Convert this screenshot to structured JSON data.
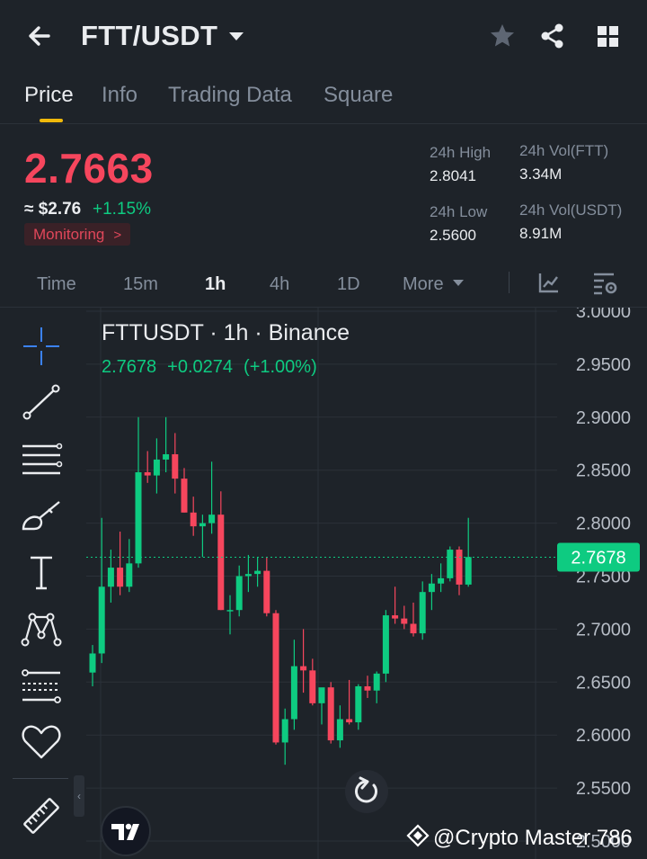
{
  "header": {
    "pair": "FTT/USDT"
  },
  "tabs": [
    {
      "label": "Price",
      "active": true
    },
    {
      "label": "Info",
      "active": false
    },
    {
      "label": "Trading Data",
      "active": false
    },
    {
      "label": "Square",
      "active": false
    }
  ],
  "price": {
    "last": "2.7663",
    "usd": "≈ $2.76",
    "change": "+1.15%",
    "monitoring": "Monitoring",
    "monitoring_chevron": ">"
  },
  "stats": {
    "high_label": "24h High",
    "high_value": "2.8041",
    "low_label": "24h Low",
    "low_value": "2.5600",
    "vol_base_label": "24h Vol(FTT)",
    "vol_base_value": "3.34M",
    "vol_quote_label": "24h Vol(USDT)",
    "vol_quote_value": "8.91M"
  },
  "intervals": [
    {
      "label": "Time",
      "active": false
    },
    {
      "label": "15m",
      "active": false
    },
    {
      "label": "1h",
      "active": true
    },
    {
      "label": "4h",
      "active": false
    },
    {
      "label": "1D",
      "active": false
    },
    {
      "label": "More",
      "active": false
    }
  ],
  "tools": [
    "crosshair-icon",
    "trend-line-icon",
    "horizontal-lines-icon",
    "brush-icon",
    "text-icon",
    "pattern-icon",
    "prediction-icon",
    "favorite-icon",
    "ruler-icon"
  ],
  "chart": {
    "title": "FTTUSDT · 1h · Binance",
    "ohlc_close": "2.7678",
    "ohlc_change": "+0.0274",
    "ohlc_pct": "(+1.00%)",
    "current_price_label": "2.7678",
    "up_color": "#0ecb81",
    "down_color": "#f6465d"
  },
  "watermark": "@Crypto Master 786",
  "chart_data": {
    "type": "candlestick",
    "title": "FTTUSDT · 1h · Binance",
    "ytick_labels": [
      "3.0000",
      "2.9500",
      "2.9000",
      "2.8500",
      "2.8000",
      "2.7500",
      "2.7000",
      "2.6500",
      "2.6000",
      "2.5500",
      "2.5000"
    ],
    "ylim": [
      2.5,
      3.0
    ],
    "current_price": 2.7678,
    "candles": [
      {
        "o": 2.659,
        "h": 2.685,
        "l": 2.646,
        "c": 2.677
      },
      {
        "o": 2.677,
        "h": 2.805,
        "l": 2.668,
        "c": 2.74
      },
      {
        "o": 2.74,
        "h": 2.775,
        "l": 2.725,
        "c": 2.758
      },
      {
        "o": 2.758,
        "h": 2.792,
        "l": 2.732,
        "c": 2.74
      },
      {
        "o": 2.74,
        "h": 2.785,
        "l": 2.735,
        "c": 2.762
      },
      {
        "o": 2.762,
        "h": 2.9,
        "l": 2.758,
        "c": 2.848
      },
      {
        "o": 2.848,
        "h": 2.868,
        "l": 2.838,
        "c": 2.845
      },
      {
        "o": 2.845,
        "h": 2.88,
        "l": 2.828,
        "c": 2.86
      },
      {
        "o": 2.86,
        "h": 2.9,
        "l": 2.848,
        "c": 2.865
      },
      {
        "o": 2.865,
        "h": 2.885,
        "l": 2.828,
        "c": 2.842
      },
      {
        "o": 2.842,
        "h": 2.852,
        "l": 2.81,
        "c": 2.81
      },
      {
        "o": 2.81,
        "h": 2.825,
        "l": 2.788,
        "c": 2.797
      },
      {
        "o": 2.797,
        "h": 2.808,
        "l": 2.768,
        "c": 2.8
      },
      {
        "o": 2.8,
        "h": 2.858,
        "l": 2.79,
        "c": 2.808
      },
      {
        "o": 2.808,
        "h": 2.83,
        "l": 2.718,
        "c": 2.718
      },
      {
        "o": 2.718,
        "h": 2.732,
        "l": 2.695,
        "c": 2.718
      },
      {
        "o": 2.718,
        "h": 2.76,
        "l": 2.712,
        "c": 2.75
      },
      {
        "o": 2.75,
        "h": 2.77,
        "l": 2.735,
        "c": 2.752
      },
      {
        "o": 2.752,
        "h": 2.768,
        "l": 2.74,
        "c": 2.755
      },
      {
        "o": 2.755,
        "h": 2.768,
        "l": 2.712,
        "c": 2.715
      },
      {
        "o": 2.715,
        "h": 2.718,
        "l": 2.591,
        "c": 2.593
      },
      {
        "o": 2.593,
        "h": 2.625,
        "l": 2.572,
        "c": 2.615
      },
      {
        "o": 2.615,
        "h": 2.69,
        "l": 2.605,
        "c": 2.665
      },
      {
        "o": 2.665,
        "h": 2.7,
        "l": 2.64,
        "c": 2.661
      },
      {
        "o": 2.661,
        "h": 2.672,
        "l": 2.628,
        "c": 2.63
      },
      {
        "o": 2.63,
        "h": 2.64,
        "l": 2.61,
        "c": 2.645
      },
      {
        "o": 2.645,
        "h": 2.65,
        "l": 2.592,
        "c": 2.595
      },
      {
        "o": 2.595,
        "h": 2.628,
        "l": 2.588,
        "c": 2.615
      },
      {
        "o": 2.615,
        "h": 2.652,
        "l": 2.61,
        "c": 2.612
      },
      {
        "o": 2.612,
        "h": 2.648,
        "l": 2.605,
        "c": 2.646
      },
      {
        "o": 2.646,
        "h": 2.656,
        "l": 2.635,
        "c": 2.642
      },
      {
        "o": 2.642,
        "h": 2.66,
        "l": 2.63,
        "c": 2.658
      },
      {
        "o": 2.658,
        "h": 2.718,
        "l": 2.65,
        "c": 2.713
      },
      {
        "o": 2.713,
        "h": 2.74,
        "l": 2.705,
        "c": 2.71
      },
      {
        "o": 2.71,
        "h": 2.722,
        "l": 2.7,
        "c": 2.705
      },
      {
        "o": 2.705,
        "h": 2.725,
        "l": 2.693,
        "c": 2.696
      },
      {
        "o": 2.696,
        "h": 2.745,
        "l": 2.69,
        "c": 2.735
      },
      {
        "o": 2.735,
        "h": 2.752,
        "l": 2.718,
        "c": 2.743
      },
      {
        "o": 2.743,
        "h": 2.762,
        "l": 2.735,
        "c": 2.748
      },
      {
        "o": 2.748,
        "h": 2.778,
        "l": 2.745,
        "c": 2.775
      },
      {
        "o": 2.775,
        "h": 2.778,
        "l": 2.732,
        "c": 2.742
      },
      {
        "o": 2.742,
        "h": 2.805,
        "l": 2.74,
        "c": 2.768
      }
    ]
  }
}
